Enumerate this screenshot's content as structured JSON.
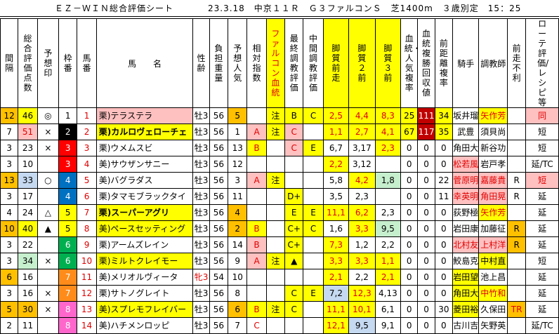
{
  "header": {
    "sheet_title": "ＥＺ－ＷＩＮ総合評価シート",
    "race_info": "23.3.18　中京１１Ｒ　Ｇ３ファルコンＳ　芝1400m　３歳別定　15：25"
  },
  "columns": [
    "間隔",
    "総合評価点数",
    "予想印",
    "枠番",
    "馬番",
    "馬　　名",
    "性齢",
    "負担重量",
    "予想人気",
    "相対指数",
    "ファルコン血統",
    "最終調教評価",
    "中間調教評価",
    "脚質前走",
    "脚質２前",
    "脚質３前",
    "血統・人気複率",
    "血統複勝回収値",
    "前距離複率",
    "騎手",
    "調教師",
    "前走不利",
    "ローテ評価/レシピ等"
  ],
  "rows": [
    {
      "interval": "12",
      "score": "46",
      "mark": "◎",
      "waku": "1",
      "uma": "1",
      "name": "栗)テラステラ",
      "sex": "牡3",
      "kg": "56",
      "pop": "5",
      "rel": "",
      "bld": "注",
      "fin": "B",
      "mid": "C",
      "s1": "2,5",
      "s2": "4,4",
      "s3": "8,3",
      "bp": "25",
      "bv": "111",
      "pd": "34",
      "jockey": "坂井瑠",
      "trainer": "矢作芳",
      "furi": "",
      "rote": "同"
    },
    {
      "interval": "7",
      "score": "51",
      "mark": "×",
      "waku": "2",
      "uma": "2",
      "name": "栗)カルロヴェローチェ",
      "sex": "牡3",
      "kg": "56",
      "pop": "1",
      "rel": "A",
      "bld": "注",
      "fin": "C",
      "mid": "",
      "s1": "1,1",
      "s2": "2,7",
      "s3": "4,1",
      "bp": "67",
      "bv": "117",
      "pd": "35",
      "jockey": "武豊",
      "trainer": "須貝尚",
      "furi": "",
      "rote": "短"
    },
    {
      "interval": "3",
      "score": "23",
      "mark": "×",
      "waku": "3",
      "uma": "3",
      "name": "栗)ウメムスビ",
      "sex": "牡3",
      "kg": "56",
      "pop": "13",
      "rel": "B",
      "bld": "",
      "fin": "C",
      "mid": "E",
      "s1": "6,7",
      "s2": "3,17",
      "s3": "2,3",
      "bp": "0",
      "bv": "0",
      "pd": "0",
      "jockey": "角田大",
      "trainer": "新谷功",
      "furi": "",
      "rote": "短"
    },
    {
      "interval": "3",
      "score": "10",
      "mark": "",
      "waku": "3",
      "uma": "4",
      "name": "美)サウザンサニー",
      "sex": "牡3",
      "kg": "56",
      "pop": "12",
      "rel": "",
      "bld": "",
      "fin": "",
      "mid": "",
      "s1": "2,2",
      "s2": "3,12",
      "s3": "",
      "bp": "0",
      "bv": "0",
      "pd": "0",
      "jockey": "松若風",
      "trainer": "岩戸孝",
      "furi": "",
      "rote": "延/TC"
    },
    {
      "interval": "13",
      "score": "33",
      "mark": "○",
      "waku": "4",
      "uma": "5",
      "name": "美)バグラダス",
      "sex": "牡3",
      "kg": "56",
      "pop": "3",
      "rel": "A",
      "bld": "注",
      "fin": "",
      "mid": "",
      "s1": "5,8",
      "s2": "4,2",
      "s3": "1,8",
      "bp": "0",
      "bv": "0",
      "pd": "22",
      "jockey": "菅原明",
      "trainer": "嘉藤貴",
      "furi": "R",
      "rote": "短"
    },
    {
      "interval": "3",
      "score": "17",
      "mark": "",
      "waku": "4",
      "uma": "6",
      "name": "栗)タマモブラックタイ",
      "sex": "牡3",
      "kg": "56",
      "pop": "11",
      "rel": "",
      "bld": "",
      "fin": "D+",
      "mid": "",
      "s1": "3,5",
      "s2": "2,3",
      "s3": "",
      "bp": "0",
      "bv": "0",
      "pd": "11",
      "jockey": "幸英明",
      "trainer": "角田晃",
      "furi": "R",
      "rote": "延"
    },
    {
      "interval": "4",
      "score": "24",
      "mark": "△",
      "waku": "5",
      "uma": "7",
      "name": "栗)スーパーアグリ",
      "sex": "牡3",
      "kg": "56",
      "pop": "4",
      "rel": "",
      "bld": "",
      "fin": "E",
      "mid": "E",
      "s1": "11,1",
      "s2": "6,2",
      "s3": "2,3",
      "bp": "0",
      "bv": "0",
      "pd": "0",
      "jockey": "荻野極",
      "trainer": "矢作芳",
      "furi": "",
      "rote": "延"
    },
    {
      "interval": "10",
      "score": "40",
      "mark": "▲",
      "waku": "5",
      "uma": "8",
      "name": "美)ペースセッティング",
      "sex": "牡3",
      "kg": "56",
      "pop": "2",
      "rel": "B",
      "bld": "",
      "fin": "C+",
      "mid": "C",
      "s1": "1,6",
      "s2": "3,3",
      "s3": "9,5",
      "bp": "0",
      "bv": "0",
      "pd": "0",
      "jockey": "岩田康",
      "trainer": "加藤征",
      "furi": "R",
      "rote": "延"
    },
    {
      "interval": "3",
      "score": "22",
      "mark": "",
      "waku": "6",
      "uma": "9",
      "name": "栗)アームズレイン",
      "sex": "牡3",
      "kg": "56",
      "pop": "14",
      "rel": "B",
      "bld": "",
      "fin": "C+",
      "mid": "",
      "s1": "7,3",
      "s2": "1,2",
      "s3": "2,2",
      "bp": "0",
      "bv": "0",
      "pd": "0",
      "jockey": "北村友",
      "trainer": "上村洋",
      "furi": "R",
      "rote": "延"
    },
    {
      "interval": "3",
      "score": "34",
      "mark": "×",
      "waku": "6",
      "uma": "10",
      "name": "栗)ミルトクレイモー",
      "sex": "牡3",
      "kg": "56",
      "pop": "9",
      "rel": "A",
      "bld": "注",
      "fin": "▲",
      "mid": "",
      "s1": "3,3",
      "s2": "3,3",
      "s3": "1,1",
      "bp": "0",
      "bv": "0",
      "pd": "0",
      "jockey": "鮫島克",
      "trainer": "中村直",
      "furi": "",
      "rote": "短"
    },
    {
      "interval": "6",
      "score": "16",
      "mark": "",
      "waku": "7",
      "uma": "11",
      "name": "美)メリオルヴィータ",
      "sex": "牝3",
      "kg": "54",
      "pop": "10",
      "rel": "",
      "bld": "",
      "fin": "",
      "mid": "",
      "s1": "2,1",
      "s2": "2,2",
      "s3": "2,1",
      "bp": "0",
      "bv": "0",
      "pd": "0",
      "jockey": "岩田望",
      "trainer": "池上昌",
      "furi": "",
      "rote": "延"
    },
    {
      "interval": "3",
      "score": "16",
      "mark": "×",
      "waku": "7",
      "uma": "12",
      "name": "栗)サトノグレイト",
      "sex": "牡3",
      "kg": "56",
      "pop": "8",
      "rel": "",
      "bld": "",
      "fin": "C",
      "mid": "E",
      "s1": "7,2",
      "s2": "12,3",
      "s3": "4,13",
      "bp": "0",
      "bv": "0",
      "pd": "0",
      "jockey": "角田大",
      "trainer": "中竹和",
      "furi": "",
      "rote": "延"
    },
    {
      "interval": "5",
      "score": "30",
      "mark": "×",
      "waku": "8",
      "uma": "13",
      "name": "美)スプレモフレイバー",
      "sex": "牡3",
      "kg": "56",
      "pop": "6",
      "rel": "B",
      "bld": "注",
      "fin": "C",
      "mid": "",
      "s1": "11,1",
      "s2": "10,1",
      "s3": "6,1",
      "bp": "0",
      "bv": "0",
      "pd": "30",
      "jockey": "菱田裕",
      "trainer": "久保田",
      "furi": "TR",
      "rote": "延"
    },
    {
      "interval": "2",
      "score": "11",
      "mark": "",
      "waku": "8",
      "uma": "14",
      "name": "美)ハチメンロッピ",
      "sex": "牡3",
      "kg": "56",
      "pop": "7",
      "rel": "C",
      "bld": "",
      "fin": "",
      "mid": "",
      "s1": "12,1",
      "s2": "9,5",
      "s3": "9,1",
      "bp": "0",
      "bv": "0",
      "pd": "0",
      "jockey": "古川吉",
      "trainer": "矢野英",
      "furi": "",
      "rote": "延/TC"
    }
  ],
  "colors": {
    "yellow": "#ffff00",
    "pink": "#ffc0c0",
    "orange": "#ffc000",
    "blue": "#c5d9f1",
    "green": "#c6efce",
    "red": "#ff0000",
    "darkred": "#c00000",
    "waku": [
      "#ffffff",
      "#000000",
      "#ff0000",
      "#0070c0",
      "#ffff00",
      "#00b050",
      "#ff8c1a",
      "#ff66cc"
    ]
  }
}
